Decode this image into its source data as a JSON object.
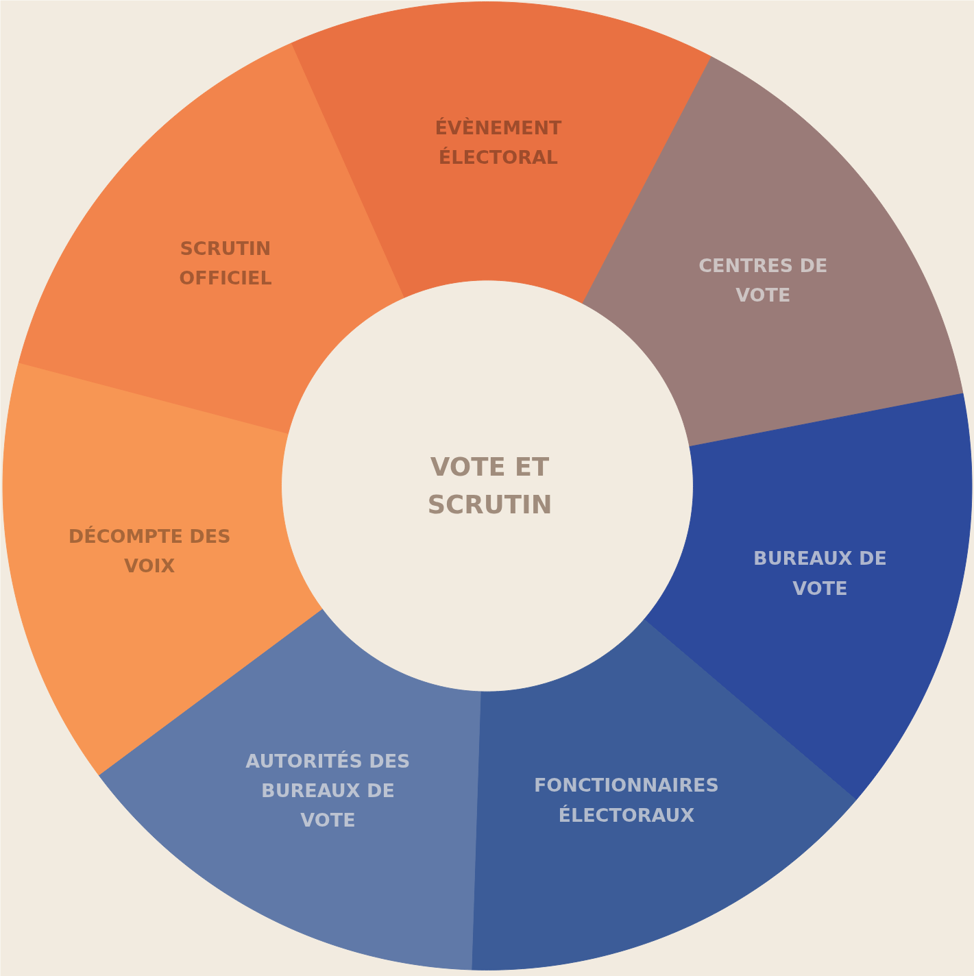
{
  "chart_data": {
    "type": "donut",
    "title": "VOTE ET SCRUTIN",
    "categories": [
      "ÉVÈNEMENT ÉLECTORAL",
      "CENTRES DE VOTE",
      "BUREAUX DE VOTE",
      "FONCTIONNAIRES ÉLECTORAUX",
      "AUTORITÉS DES BUREAUX DE VOTE",
      "DÉCOMPTE DES VOIX",
      "SCRUTIN OFFICIEL"
    ],
    "values": [
      14.29,
      14.29,
      14.29,
      14.29,
      14.29,
      14.29,
      14.26
    ],
    "colors": [
      "#e97142",
      "#9a7b78",
      "#2d4a9c",
      "#3c5c98",
      "#6079a8",
      "#f79654",
      "#f2844c"
    ]
  }
}
